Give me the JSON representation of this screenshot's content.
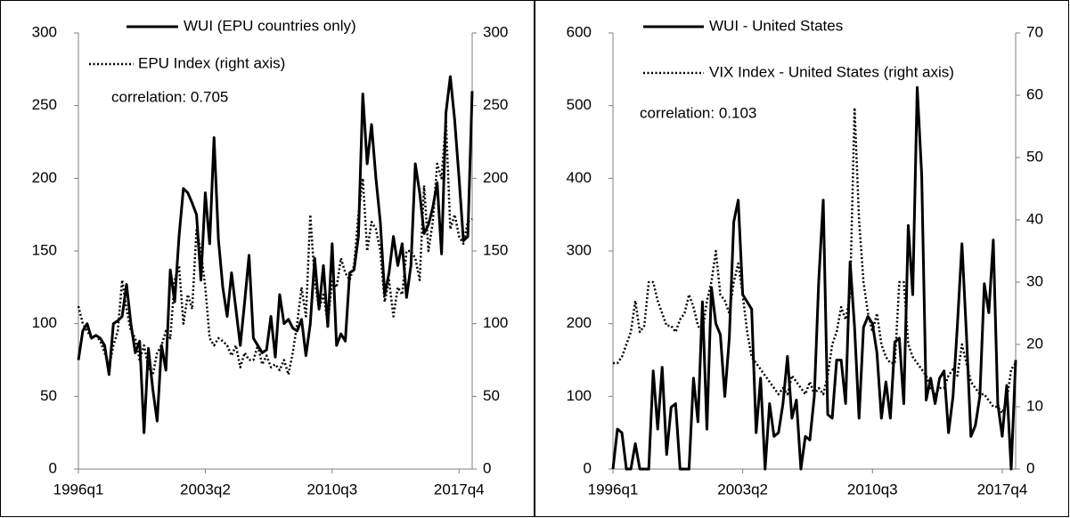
{
  "chart_data": [
    {
      "type": "line",
      "annotation": "correlation: 0.705",
      "categories": [
        "1996q1",
        null,
        null,
        null,
        null,
        null,
        null,
        null,
        null,
        null,
        null,
        null,
        null,
        null,
        null,
        null,
        null,
        null,
        null,
        null,
        null,
        null,
        null,
        null,
        null,
        null,
        null,
        null,
        null,
        "2003q2",
        null,
        null,
        null,
        null,
        null,
        null,
        null,
        null,
        null,
        null,
        null,
        null,
        null,
        null,
        null,
        null,
        null,
        null,
        null,
        null,
        null,
        null,
        null,
        null,
        null,
        null,
        null,
        null,
        "2010q3",
        null,
        null,
        null,
        null,
        null,
        null,
        null,
        null,
        null,
        null,
        null,
        null,
        null,
        null,
        null,
        null,
        null,
        null,
        null,
        null,
        null,
        null,
        null,
        null,
        null,
        null,
        null,
        null,
        "2017q4",
        null,
        null,
        null
      ],
      "series": [
        {
          "name": "WUI (EPU countries only)",
          "color": "#000000",
          "style": "solid",
          "values": [
            75,
            95,
            100,
            90,
            92,
            90,
            85,
            65,
            100,
            102,
            105,
            127,
            100,
            80,
            88,
            25,
            83,
            55,
            33,
            85,
            68,
            137,
            115,
            160,
            193,
            190,
            183,
            175,
            130,
            190,
            155,
            228,
            158,
            125,
            105,
            135,
            110,
            85,
            115,
            147,
            90,
            85,
            80,
            82,
            105,
            77,
            120,
            100,
            103,
            97,
            95,
            103,
            78,
            100,
            145,
            110,
            140,
            98,
            155,
            85,
            93,
            88,
            135,
            137,
            160,
            258,
            210,
            237,
            200,
            170,
            120,
            135,
            160,
            140,
            155,
            118,
            140,
            210,
            190,
            162,
            168,
            180,
            197,
            148,
            245,
            270,
            240,
            200,
            157,
            160,
            260
          ]
        },
        {
          "name": "EPU Index (right axis)",
          "color": "#000000",
          "style": "dotted",
          "axis": "y2",
          "values": [
            112,
            100,
            95,
            90,
            92,
            88,
            80,
            70,
            85,
            95,
            130,
            110,
            95,
            90,
            75,
            85,
            70,
            65,
            80,
            85,
            95,
            90,
            130,
            140,
            100,
            120,
            110,
            165,
            150,
            125,
            90,
            85,
            90,
            88,
            85,
            78,
            85,
            70,
            80,
            75,
            75,
            85,
            72,
            78,
            70,
            72,
            68,
            75,
            65,
            80,
            100,
            125,
            105,
            175,
            130,
            110,
            120,
            100,
            130,
            125,
            145,
            135,
            130,
            140,
            175,
            200,
            150,
            170,
            165,
            150,
            115,
            130,
            105,
            125,
            120,
            150,
            150,
            145,
            130,
            195,
            150,
            170,
            210,
            200,
            240,
            165,
            175,
            160,
            155,
            170,
            172
          ]
        }
      ],
      "ylim": [
        0,
        300
      ],
      "yticks": [
        0,
        50,
        100,
        150,
        200,
        250,
        300
      ],
      "y2lim": [
        0,
        300
      ],
      "y2ticks": [
        0,
        50,
        100,
        150,
        200,
        250,
        300
      ]
    },
    {
      "type": "line",
      "annotation": "correlation: 0.103",
      "categories": [
        "1996q1",
        null,
        null,
        null,
        null,
        null,
        null,
        null,
        null,
        null,
        null,
        null,
        null,
        null,
        null,
        null,
        null,
        null,
        null,
        null,
        null,
        null,
        null,
        null,
        null,
        null,
        null,
        null,
        null,
        "2003q2",
        null,
        null,
        null,
        null,
        null,
        null,
        null,
        null,
        null,
        null,
        null,
        null,
        null,
        null,
        null,
        null,
        null,
        null,
        null,
        null,
        null,
        null,
        null,
        null,
        null,
        null,
        null,
        null,
        "2010q3",
        null,
        null,
        null,
        null,
        null,
        null,
        null,
        null,
        null,
        null,
        null,
        null,
        null,
        null,
        null,
        null,
        null,
        null,
        null,
        null,
        null,
        null,
        null,
        null,
        null,
        null,
        null,
        null,
        "2017q4",
        null,
        null,
        null
      ],
      "series": [
        {
          "name": "WUI - United States",
          "color": "#000000",
          "style": "solid",
          "values": [
            0,
            55,
            50,
            0,
            0,
            35,
            0,
            0,
            0,
            135,
            55,
            140,
            20,
            85,
            90,
            0,
            0,
            0,
            125,
            65,
            230,
            55,
            250,
            200,
            185,
            100,
            180,
            340,
            370,
            240,
            230,
            220,
            50,
            125,
            0,
            90,
            45,
            50,
            90,
            155,
            70,
            95,
            0,
            45,
            40,
            100,
            260,
            370,
            75,
            70,
            150,
            150,
            90,
            285,
            195,
            70,
            195,
            210,
            200,
            160,
            70,
            120,
            70,
            175,
            180,
            90,
            335,
            240,
            525,
            405,
            95,
            125,
            90,
            125,
            135,
            50,
            100,
            200,
            310,
            185,
            45,
            60,
            100,
            255,
            215,
            315,
            90,
            45,
            115,
            0,
            150
          ]
        },
        {
          "name": "VIX Index - United States (right axis)",
          "color": "#000000",
          "style": "dotted",
          "axis": "y2",
          "values": [
            17,
            17,
            18,
            20,
            22,
            27,
            22,
            23,
            30,
            30,
            27,
            25,
            23,
            23,
            22,
            24,
            25,
            28,
            26,
            23,
            22,
            27,
            30,
            35,
            28,
            27,
            25,
            30,
            33,
            28,
            22,
            18,
            17,
            16,
            15,
            14,
            13,
            12,
            13,
            12,
            15,
            14,
            13,
            12,
            14,
            12,
            13,
            12,
            15,
            20,
            22,
            26,
            24,
            28,
            58,
            40,
            30,
            25,
            22,
            25,
            20,
            18,
            17,
            17,
            30,
            30,
            20,
            18,
            17,
            16,
            15,
            13,
            12,
            13,
            13,
            15,
            16,
            15,
            20,
            17,
            14,
            13,
            12,
            12,
            11,
            10,
            10,
            9,
            11,
            16,
            17
          ]
        }
      ],
      "ylim": [
        0,
        600
      ],
      "yticks": [
        0,
        100,
        200,
        300,
        400,
        500,
        600
      ],
      "y2lim": [
        0,
        70
      ],
      "y2ticks": [
        0,
        10,
        20,
        30,
        40,
        50,
        60,
        70
      ]
    }
  ]
}
